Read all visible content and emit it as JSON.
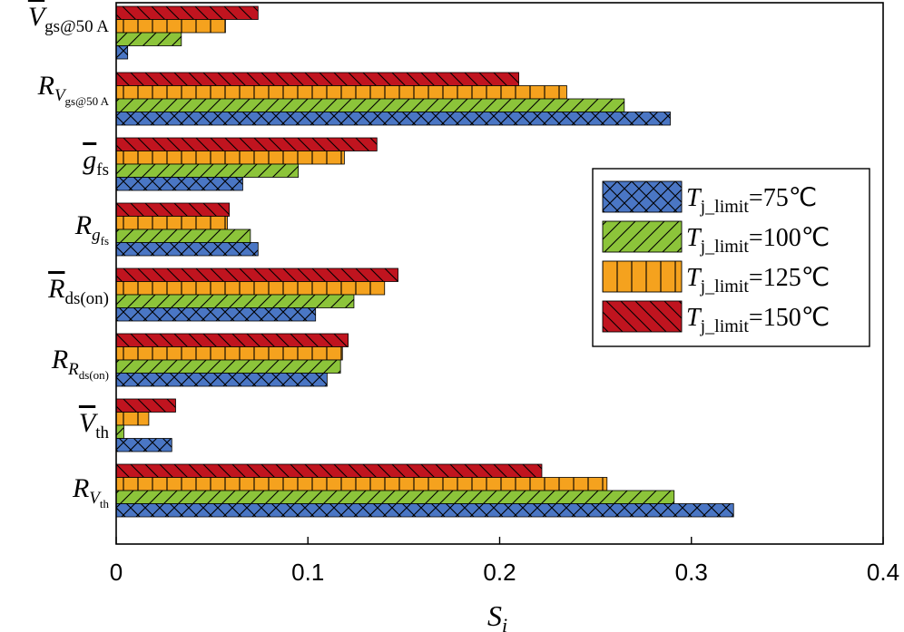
{
  "chart_data": {
    "type": "bar",
    "orientation": "horizontal",
    "categories": [
      {
        "base": "V",
        "overline": true,
        "sub": "gs@50 A",
        "subsub": ""
      },
      {
        "base": "R",
        "overline": false,
        "sub": "V",
        "subsub": "gs@50 A"
      },
      {
        "base": "g",
        "overline": true,
        "sub": "fs",
        "subsub": ""
      },
      {
        "base": "R",
        "overline": false,
        "sub": "g",
        "subsub": "fs"
      },
      {
        "base": "R",
        "overline": true,
        "sub": "ds(on)",
        "subsub": ""
      },
      {
        "base": "R",
        "overline": false,
        "sub": "R",
        "subsub": "ds(on)"
      },
      {
        "base": "V",
        "overline": true,
        "sub": "th",
        "subsub": ""
      },
      {
        "base": "R",
        "overline": false,
        "sub": "V",
        "subsub": "th"
      }
    ],
    "series": [
      {
        "name": "75℃",
        "color": "#4a76c4",
        "pattern": "crosshatch",
        "values": [
          0.006,
          0.289,
          0.066,
          0.074,
          0.104,
          0.11,
          0.029,
          0.322
        ]
      },
      {
        "name": "100℃",
        "color": "#8cc43a",
        "pattern": "diagonal",
        "values": [
          0.034,
          0.265,
          0.095,
          0.07,
          0.124,
          0.117,
          0.004,
          0.291
        ]
      },
      {
        "name": "125℃",
        "color": "#f5a21e",
        "pattern": "vertical",
        "values": [
          0.057,
          0.235,
          0.119,
          0.058,
          0.14,
          0.118,
          0.017,
          0.256
        ]
      },
      {
        "name": "150℃",
        "color": "#c0141f",
        "pattern": "backdiagonal",
        "values": [
          0.074,
          0.21,
          0.136,
          0.059,
          0.147,
          0.121,
          0.031,
          0.222
        ]
      }
    ],
    "legend_prefix": "T",
    "legend_sub": "j_limit",
    "xlabel": "S",
    "xlabel_sub": "i",
    "xlim": [
      0,
      0.4
    ],
    "xticks": [
      "0",
      "0.1",
      "0.2",
      "0.3",
      "0.4"
    ],
    "legend_position": "right",
    "grid": false
  }
}
